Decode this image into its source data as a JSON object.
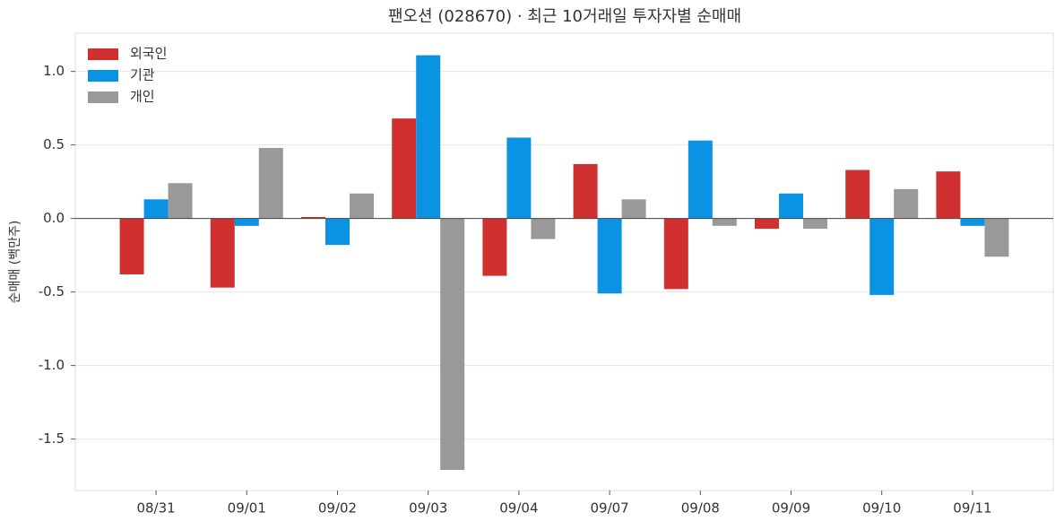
{
  "chart_data": {
    "type": "bar",
    "title": "팬오션 (028670) · 최근 10거래일 투자자별 순매매",
    "y_label": "순매매 (백만주)",
    "categories": [
      "08/31",
      "09/01",
      "09/02",
      "09/03",
      "09/04",
      "09/07",
      "09/08",
      "09/09",
      "09/10",
      "09/11"
    ],
    "series": [
      {
        "name": "외국인",
        "color": "#d13030",
        "values": [
          -0.38,
          -0.47,
          0.01,
          0.68,
          -0.39,
          0.37,
          -0.48,
          -0.07,
          0.33,
          0.32
        ]
      },
      {
        "name": "기관",
        "color": "#0a92e3",
        "values": [
          0.13,
          -0.05,
          -0.18,
          1.11,
          0.55,
          -0.51,
          0.53,
          0.17,
          -0.52,
          -0.05
        ]
      },
      {
        "name": "개인",
        "color": "#999999",
        "values": [
          0.24,
          0.48,
          0.17,
          -1.71,
          -0.14,
          0.13,
          -0.05,
          -0.07,
          0.2,
          -0.26
        ]
      }
    ],
    "ylim": [
      -1.85,
      1.26
    ],
    "yticks": [
      -1.5,
      {
        "value": -1,
        "label": "-1.0"
      },
      -0.5,
      {
        "value": 0,
        "label": "0.0"
      },
      0.5,
      {
        "value": 1,
        "label": "1.0"
      }
    ],
    "grid": true,
    "legend": "upper-left"
  }
}
